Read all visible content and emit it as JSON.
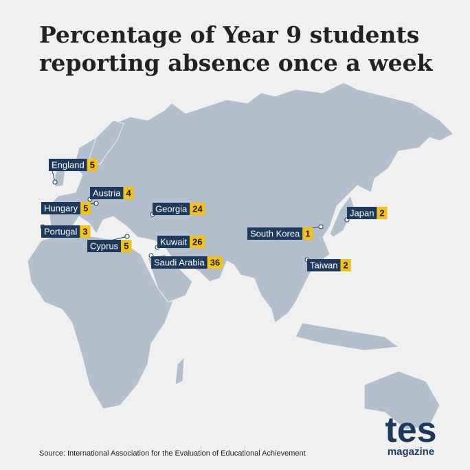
{
  "header": {
    "title_lines": [
      "Percentage of Year 9 students",
      "reporting absence once a week"
    ]
  },
  "locations": [
    {
      "name": "England",
      "value": 5
    },
    {
      "name": "Austria",
      "value": 4
    },
    {
      "name": "Hungary",
      "value": 5
    },
    {
      "name": "Portugal",
      "value": 3
    },
    {
      "name": "Cyprus",
      "value": 5
    },
    {
      "name": "Georgia",
      "value": 24
    },
    {
      "name": "Kuwait",
      "value": 26
    },
    {
      "name": "Saudi Arabia",
      "value": 36
    },
    {
      "name": "South Korea",
      "value": 1
    },
    {
      "name": "Japan",
      "value": 2
    },
    {
      "name": "Taiwan",
      "value": 2
    }
  ],
  "footer": {
    "source": "Source: International Association for the Evaluation of Educational Achievement"
  },
  "logo": {
    "brand": "tes",
    "sub": "magazine"
  }
}
